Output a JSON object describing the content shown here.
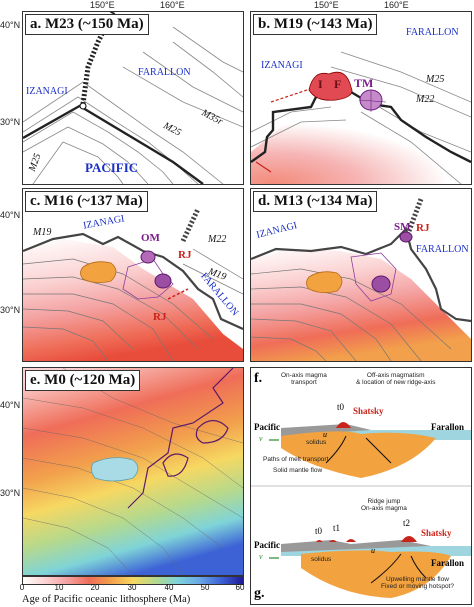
{
  "axes": {
    "lon1": "150°E",
    "lon2": "160°E",
    "lat40": "40°N",
    "lat30": "30°N"
  },
  "panels": {
    "a": {
      "title": "a. M23 (~150 Ma)",
      "izanagi": "IZANAGI",
      "farallon": "FARALLON",
      "pacific": "PACIFIC",
      "m35r": "M35r",
      "m25a": "M25",
      "m25b": "M25"
    },
    "b": {
      "title": "b. M19 (~143 Ma)",
      "izanagi": "IZANAGI",
      "farallon": "FARALLON",
      "i": "I",
      "f": "F",
      "tm": "TM",
      "m25": "M25",
      "m22": "M22",
      "m22b": "M22"
    },
    "c": {
      "title": "c. M16 (~137 Ma)",
      "izanagi": "IZANAGI",
      "farallon": "FARALLON",
      "m19": "M19",
      "m22": "M22",
      "m19b": "M19",
      "om": "OM",
      "rj1": "RJ",
      "rj2": "RJ"
    },
    "d": {
      "title": "d. M13 (~134 Ma)",
      "izanagi": "IZANAGI",
      "farallon": "FARALLON",
      "sm": "SM",
      "rj": "RJ"
    },
    "e": {
      "title": "e. M0 (~120 Ma)"
    }
  },
  "schematic": {
    "f": "f.",
    "g": "g.",
    "onaxis": "On-axis magma\ntransport",
    "offaxis": "Off-axis magmatism\n& location of new ridge-axis",
    "t0": "t0",
    "t1": "t1",
    "t2": "t2",
    "shatsky1": "Shatsky",
    "shatsky2": "Shatsky",
    "pacific1": "Pacific",
    "pacific2": "Pacific",
    "farallon1": "Farallon",
    "farallon2": "Farallon",
    "u": "u",
    "v": "v",
    "solidus": "solidus",
    "legend1": "Paths of melt transport",
    "legend2": "Solid mantle flow",
    "ridgejump": "Ridge jump\nOn-axis magma",
    "upwelling": "Upwelling mantle flow\nFixed or moving hotspot?"
  },
  "colorbar": {
    "title": "Age of Pacific oceanic lithosphere (Ma)",
    "ticks": [
      "0",
      "10",
      "20",
      "30",
      "40",
      "50",
      "60"
    ],
    "colors": [
      "#ffffff",
      "#fbd3d3",
      "#f4a3a3",
      "#ef6d58",
      "#f2a04c",
      "#f6d862",
      "#b6d98c",
      "#7fd4d8",
      "#6aa9e6",
      "#3d62d6",
      "#1f1a96"
    ]
  }
}
